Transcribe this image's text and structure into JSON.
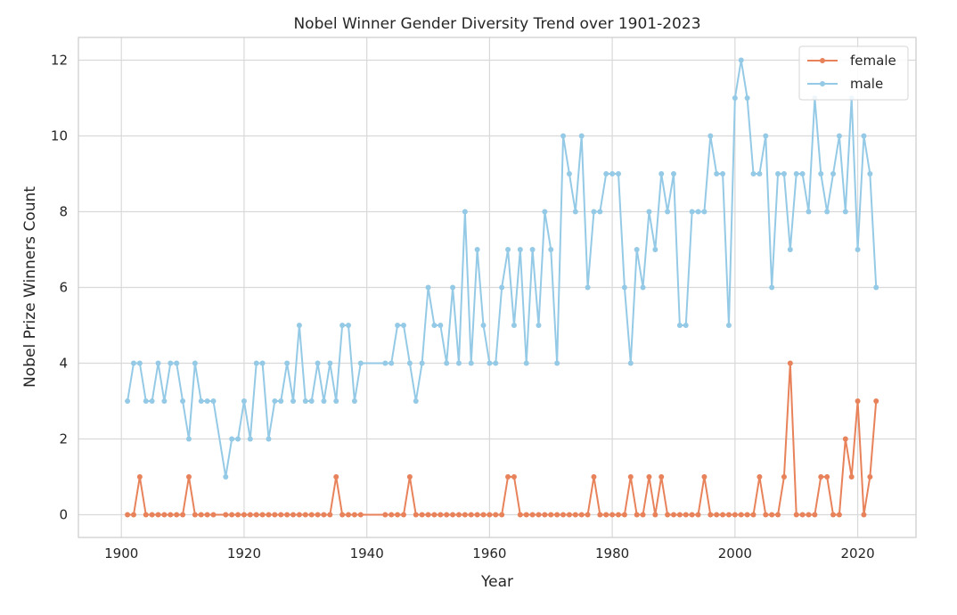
{
  "chart_data": {
    "type": "line",
    "title": "Nobel Winner Gender Diversity Trend over 1901-2023",
    "xlabel": "Year",
    "ylabel": "Nobel Prize Winners Count",
    "xlim": [
      1893,
      2029.5
    ],
    "ylim": [
      -0.6,
      12.6
    ],
    "x_ticks": [
      1900,
      1920,
      1940,
      1960,
      1980,
      2000,
      2020
    ],
    "y_ticks": [
      0,
      2,
      4,
      6,
      8,
      10,
      12
    ],
    "x_tick_labels": [
      "1900",
      "1920",
      "1940",
      "1960",
      "1980",
      "2000",
      "2020"
    ],
    "y_tick_labels": [
      "0",
      "2",
      "4",
      "6",
      "8",
      "10",
      "12"
    ],
    "grid": true,
    "legend_position": "top-right",
    "series": [
      {
        "name": "female",
        "color": "#e8825a",
        "points": [
          [
            1901,
            0
          ],
          [
            1902,
            0
          ],
          [
            1903,
            1
          ],
          [
            1904,
            0
          ],
          [
            1905,
            0
          ],
          [
            1906,
            0
          ],
          [
            1907,
            0
          ],
          [
            1908,
            0
          ],
          [
            1909,
            0
          ],
          [
            1910,
            0
          ],
          [
            1911,
            1
          ],
          [
            1912,
            0
          ],
          [
            1913,
            0
          ],
          [
            1914,
            0
          ],
          [
            1915,
            0
          ],
          [
            1917,
            0
          ],
          [
            1918,
            0
          ],
          [
            1919,
            0
          ],
          [
            1920,
            0
          ],
          [
            1921,
            0
          ],
          [
            1922,
            0
          ],
          [
            1923,
            0
          ],
          [
            1924,
            0
          ],
          [
            1925,
            0
          ],
          [
            1926,
            0
          ],
          [
            1927,
            0
          ],
          [
            1928,
            0
          ],
          [
            1929,
            0
          ],
          [
            1930,
            0
          ],
          [
            1931,
            0
          ],
          [
            1932,
            0
          ],
          [
            1933,
            0
          ],
          [
            1934,
            0
          ],
          [
            1935,
            1
          ],
          [
            1936,
            0
          ],
          [
            1937,
            0
          ],
          [
            1938,
            0
          ],
          [
            1939,
            0
          ],
          [
            1943,
            0
          ],
          [
            1944,
            0
          ],
          [
            1945,
            0
          ],
          [
            1946,
            0
          ],
          [
            1947,
            1
          ],
          [
            1948,
            0
          ],
          [
            1949,
            0
          ],
          [
            1950,
            0
          ],
          [
            1951,
            0
          ],
          [
            1952,
            0
          ],
          [
            1953,
            0
          ],
          [
            1954,
            0
          ],
          [
            1955,
            0
          ],
          [
            1956,
            0
          ],
          [
            1957,
            0
          ],
          [
            1958,
            0
          ],
          [
            1959,
            0
          ],
          [
            1960,
            0
          ],
          [
            1961,
            0
          ],
          [
            1962,
            0
          ],
          [
            1963,
            1
          ],
          [
            1964,
            1
          ],
          [
            1965,
            0
          ],
          [
            1966,
            0
          ],
          [
            1967,
            0
          ],
          [
            1968,
            0
          ],
          [
            1969,
            0
          ],
          [
            1970,
            0
          ],
          [
            1971,
            0
          ],
          [
            1972,
            0
          ],
          [
            1973,
            0
          ],
          [
            1974,
            0
          ],
          [
            1975,
            0
          ],
          [
            1976,
            0
          ],
          [
            1977,
            1
          ],
          [
            1978,
            0
          ],
          [
            1979,
            0
          ],
          [
            1980,
            0
          ],
          [
            1981,
            0
          ],
          [
            1982,
            0
          ],
          [
            1983,
            1
          ],
          [
            1984,
            0
          ],
          [
            1985,
            0
          ],
          [
            1986,
            1
          ],
          [
            1987,
            0
          ],
          [
            1988,
            1
          ],
          [
            1989,
            0
          ],
          [
            1990,
            0
          ],
          [
            1991,
            0
          ],
          [
            1992,
            0
          ],
          [
            1993,
            0
          ],
          [
            1994,
            0
          ],
          [
            1995,
            1
          ],
          [
            1996,
            0
          ],
          [
            1997,
            0
          ],
          [
            1998,
            0
          ],
          [
            1999,
            0
          ],
          [
            2000,
            0
          ],
          [
            2001,
            0
          ],
          [
            2002,
            0
          ],
          [
            2003,
            0
          ],
          [
            2004,
            1
          ],
          [
            2005,
            0
          ],
          [
            2006,
            0
          ],
          [
            2007,
            0
          ],
          [
            2008,
            1
          ],
          [
            2009,
            4
          ],
          [
            2010,
            0
          ],
          [
            2011,
            0
          ],
          [
            2012,
            0
          ],
          [
            2013,
            0
          ],
          [
            2014,
            1
          ],
          [
            2015,
            1
          ],
          [
            2016,
            0
          ],
          [
            2017,
            0
          ],
          [
            2018,
            2
          ],
          [
            2019,
            1
          ],
          [
            2020,
            3
          ],
          [
            2021,
            0
          ],
          [
            2022,
            1
          ],
          [
            2023,
            3
          ]
        ]
      },
      {
        "name": "male",
        "color": "#95cae6",
        "points": [
          [
            1901,
            3
          ],
          [
            1902,
            4
          ],
          [
            1903,
            4
          ],
          [
            1904,
            3
          ],
          [
            1905,
            3
          ],
          [
            1906,
            4
          ],
          [
            1907,
            3
          ],
          [
            1908,
            4
          ],
          [
            1909,
            4
          ],
          [
            1910,
            3
          ],
          [
            1911,
            2
          ],
          [
            1912,
            4
          ],
          [
            1913,
            3
          ],
          [
            1914,
            3
          ],
          [
            1915,
            3
          ],
          [
            1917,
            1
          ],
          [
            1918,
            2
          ],
          [
            1919,
            2
          ],
          [
            1920,
            3
          ],
          [
            1921,
            2
          ],
          [
            1922,
            4
          ],
          [
            1923,
            4
          ],
          [
            1924,
            2
          ],
          [
            1925,
            3
          ],
          [
            1926,
            3
          ],
          [
            1927,
            4
          ],
          [
            1928,
            3
          ],
          [
            1929,
            5
          ],
          [
            1930,
            3
          ],
          [
            1931,
            3
          ],
          [
            1932,
            4
          ],
          [
            1933,
            3
          ],
          [
            1934,
            4
          ],
          [
            1935,
            3
          ],
          [
            1936,
            5
          ],
          [
            1937,
            5
          ],
          [
            1938,
            3
          ],
          [
            1939,
            4
          ],
          [
            1943,
            4
          ],
          [
            1944,
            4
          ],
          [
            1945,
            5
          ],
          [
            1946,
            5
          ],
          [
            1947,
            4
          ],
          [
            1948,
            3
          ],
          [
            1949,
            4
          ],
          [
            1950,
            6
          ],
          [
            1951,
            5
          ],
          [
            1952,
            5
          ],
          [
            1953,
            4
          ],
          [
            1954,
            6
          ],
          [
            1955,
            4
          ],
          [
            1956,
            8
          ],
          [
            1957,
            4
          ],
          [
            1958,
            7
          ],
          [
            1959,
            5
          ],
          [
            1960,
            4
          ],
          [
            1961,
            4
          ],
          [
            1962,
            6
          ],
          [
            1963,
            7
          ],
          [
            1964,
            5
          ],
          [
            1965,
            7
          ],
          [
            1966,
            4
          ],
          [
            1967,
            7
          ],
          [
            1968,
            5
          ],
          [
            1969,
            8
          ],
          [
            1970,
            7
          ],
          [
            1971,
            4
          ],
          [
            1972,
            10
          ],
          [
            1973,
            9
          ],
          [
            1974,
            8
          ],
          [
            1975,
            10
          ],
          [
            1976,
            6
          ],
          [
            1977,
            8
          ],
          [
            1978,
            8
          ],
          [
            1979,
            9
          ],
          [
            1980,
            9
          ],
          [
            1981,
            9
          ],
          [
            1982,
            6
          ],
          [
            1983,
            4
          ],
          [
            1984,
            7
          ],
          [
            1985,
            6
          ],
          [
            1986,
            8
          ],
          [
            1987,
            7
          ],
          [
            1988,
            9
          ],
          [
            1989,
            8
          ],
          [
            1990,
            9
          ],
          [
            1991,
            5
          ],
          [
            1992,
            5
          ],
          [
            1993,
            8
          ],
          [
            1994,
            8
          ],
          [
            1995,
            8
          ],
          [
            1996,
            10
          ],
          [
            1997,
            9
          ],
          [
            1998,
            9
          ],
          [
            1999,
            5
          ],
          [
            2000,
            11
          ],
          [
            2001,
            12
          ],
          [
            2002,
            11
          ],
          [
            2003,
            9
          ],
          [
            2004,
            9
          ],
          [
            2005,
            10
          ],
          [
            2006,
            6
          ],
          [
            2007,
            9
          ],
          [
            2008,
            9
          ],
          [
            2009,
            7
          ],
          [
            2010,
            9
          ],
          [
            2011,
            9
          ],
          [
            2012,
            8
          ],
          [
            2013,
            11
          ],
          [
            2014,
            9
          ],
          [
            2015,
            8
          ],
          [
            2016,
            9
          ],
          [
            2017,
            10
          ],
          [
            2018,
            8
          ],
          [
            2019,
            11
          ],
          [
            2020,
            7
          ],
          [
            2021,
            10
          ],
          [
            2022,
            9
          ],
          [
            2023,
            6
          ]
        ]
      }
    ]
  }
}
